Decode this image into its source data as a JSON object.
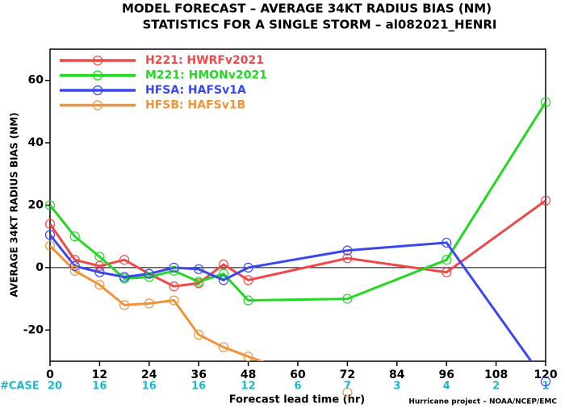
{
  "chart_data": {
    "type": "line",
    "title": "MODEL FORECAST – AVERAGE 34KT RADIUS BIAS (NM)",
    "subtitle": "STATISTICS FOR A SINGLE STORM – al082021_HENRI",
    "y_label": "AVERAGE 34KT RADIUS BIAS (NM)",
    "x_label": "Forecast lead time (hr)",
    "footer": "Hurricane project – NOAA/NCEP/EMC",
    "case_label": "#CASE",
    "case_x": [
      0,
      12,
      24,
      36,
      48,
      60,
      72,
      84,
      96,
      108,
      120
    ],
    "cases": [
      20,
      16,
      16,
      16,
      12,
      6,
      7,
      3,
      4,
      2,
      1
    ],
    "x": [
      0,
      6,
      12,
      18,
      24,
      30,
      36,
      42,
      48,
      72,
      96,
      120
    ],
    "series": [
      {
        "name": "H221: HWRFv2021",
        "color": "#f04848",
        "values": [
          14,
          2.5,
          0.5,
          2.5,
          -2,
          -6,
          -5,
          1,
          -4,
          3,
          -1.5,
          21.5
        ]
      },
      {
        "name": "M221: HMONv2021",
        "color": "#22d822",
        "values": [
          20,
          10,
          3.5,
          -3.5,
          -3,
          -1,
          -4.5,
          -2,
          -10.5,
          -10,
          2.5,
          53
        ]
      },
      {
        "name": "HFSA: HAFSv1A",
        "color": "#3a46f0",
        "values": [
          10.5,
          0.5,
          -1.5,
          -3,
          -2,
          0,
          -0.5,
          -4,
          0,
          5.5,
          8,
          -36.5
        ]
      },
      {
        "name": "HFSB: HAFSv1B",
        "color": "#f0943a",
        "values": [
          7,
          -1,
          -5.5,
          -12,
          -11.5,
          -10.5,
          -21.5,
          -25.5,
          -28.5,
          -40,
          null,
          null
        ]
      }
    ],
    "xlim": [
      0,
      120
    ],
    "xticks": [
      0,
      12,
      24,
      36,
      48,
      60,
      72,
      84,
      96,
      108,
      120
    ],
    "ylim": [
      -30,
      70
    ],
    "yticks": [
      -20,
      0,
      20,
      40,
      60
    ],
    "case_color": "#1ab8d0",
    "legend": "upper left"
  }
}
